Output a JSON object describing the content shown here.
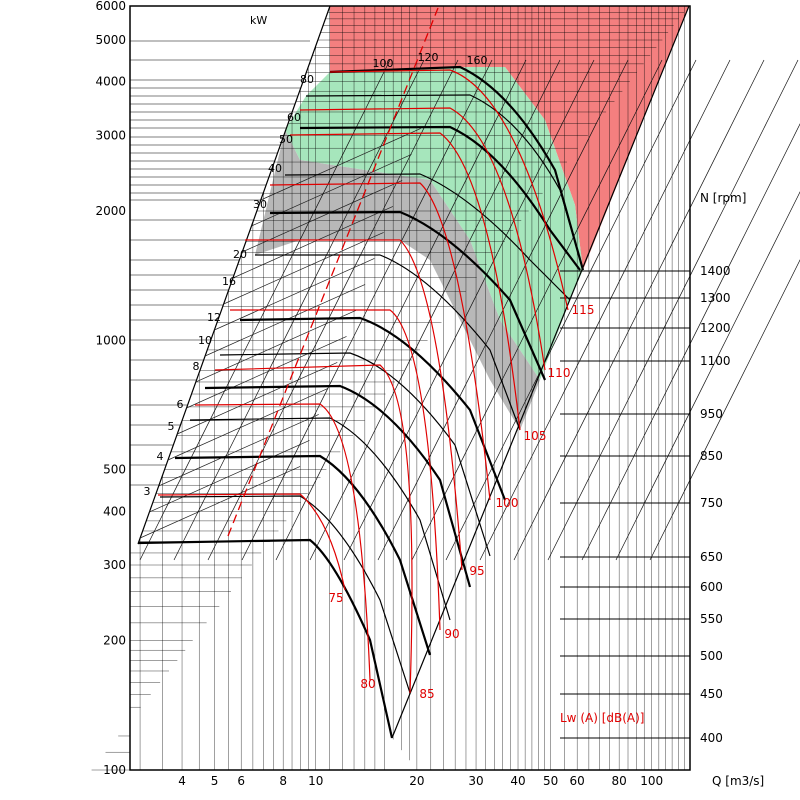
{
  "chart_data": {
    "type": "line",
    "title": "",
    "xlabel": "Q [m3/s]",
    "ylabel": "",
    "x_scale": "log",
    "y_scale": "log",
    "xlim": [
      2.8,
      130
    ],
    "ylim": [
      100,
      6000
    ],
    "x_ticks": [
      4,
      5,
      6,
      8,
      10,
      20,
      30,
      40,
      50,
      60,
      80,
      100
    ],
    "y_ticks": [
      100,
      200,
      300,
      400,
      500,
      1000,
      2000,
      3000,
      4000,
      5000,
      6000
    ],
    "power_unit": "kW",
    "power_levels": [
      "3",
      "4",
      "5",
      "6",
      "8",
      "10",
      "12",
      "16",
      "20",
      "30",
      "40",
      "50",
      "60",
      "80",
      "100",
      "120",
      "160"
    ],
    "speed_label": "N [rpm]",
    "speed_ticks": [
      1400,
      1300,
      1200,
      1100,
      950,
      850,
      750,
      650,
      600,
      550,
      500,
      450,
      400
    ],
    "noise_label": "Lw (A)  [dB(A)]",
    "noise_levels": [
      "75",
      "80",
      "85",
      "90",
      "95",
      "100",
      "105",
      "110",
      "115"
    ],
    "colors": {
      "red_zone": "#f47f7f",
      "green_zone": "#a6e6bc",
      "gray_zone": "#b8b8b8",
      "noise_curves": "#e00000",
      "grid": "#000000"
    }
  }
}
